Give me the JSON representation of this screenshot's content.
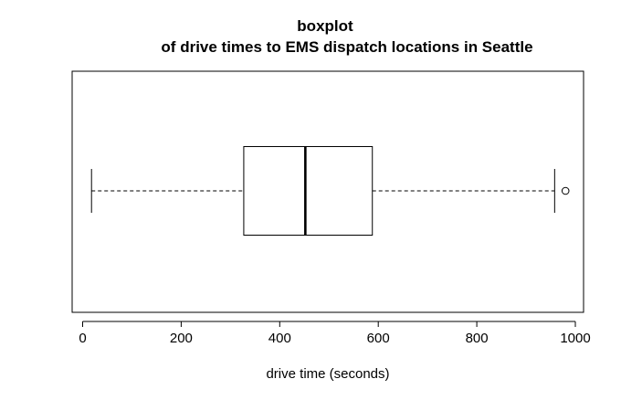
{
  "chart_data": {
    "type": "boxplot",
    "orientation": "horizontal",
    "title_line1": "boxplot",
    "title_line2": "of drive times to EMS dispatch locations in Seattle",
    "xlabel": "drive time (seconds)",
    "ylabel": "",
    "xlim": [
      -20,
      1020
    ],
    "xticks": [
      0,
      200,
      400,
      600,
      800,
      1000
    ],
    "xtick_labels": [
      "0",
      "200",
      "400",
      "600",
      "800",
      "1000"
    ],
    "grid": false,
    "legend": "none",
    "box": {
      "whisker_low": 18,
      "q1": 327,
      "median": 452,
      "q3": 588,
      "whisker_high": 958,
      "outliers": [
        980
      ]
    }
  }
}
